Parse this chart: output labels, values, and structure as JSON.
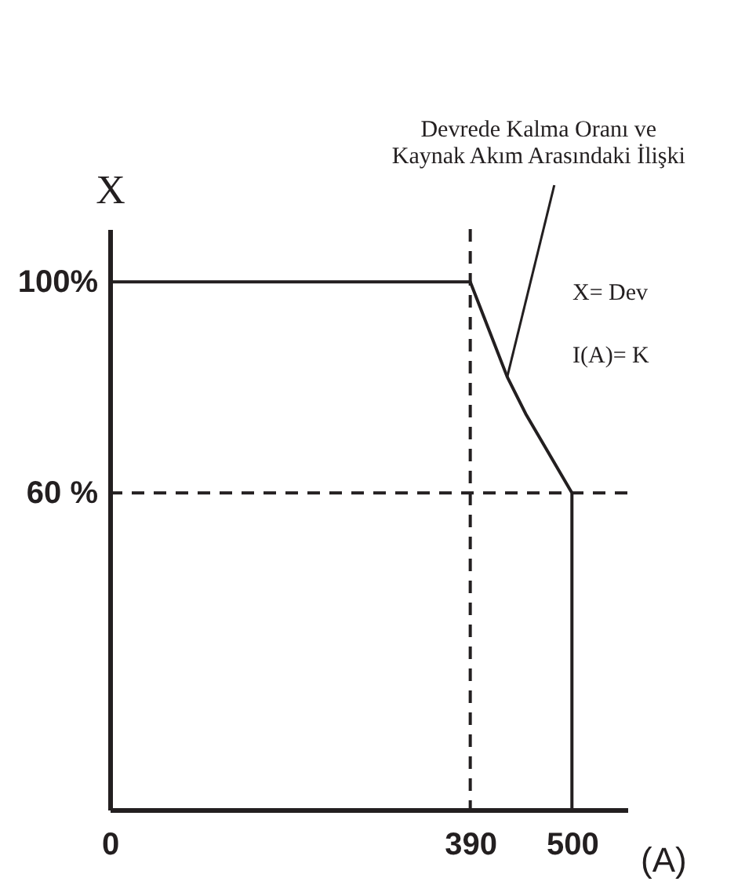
{
  "chart_data": {
    "type": "line",
    "xlabel": "(A)",
    "ylabel": "X",
    "x": [
      0,
      390,
      410,
      430,
      450,
      470,
      500,
      500
    ],
    "series": [
      {
        "color": "#231f20",
        "values": [
          100,
          100,
          91,
          82,
          75,
          69,
          60,
          0
        ]
      }
    ],
    "xlim": [
      0,
      560
    ],
    "ylim": [
      0,
      110
    ],
    "xticks": [
      0,
      390,
      500
    ],
    "yticks": [
      {
        "value": 60,
        "label": "60 %"
      },
      {
        "value": 100,
        "label": "100%"
      }
    ],
    "ref_lines": [
      {
        "axis": "x",
        "value": 390,
        "line_style": "dashed",
        "color": "#231f20"
      },
      {
        "axis": "y",
        "value": 60,
        "line_style": "dashed",
        "color": "#231f20"
      }
    ],
    "annotations": [
      {
        "text": "Devrede Kalma Oranı ve Kaynak Akım Arasındaki İlişki",
        "x": 430,
        "y": 82
      },
      "X= Dev",
      "I(A)= K"
    ],
    "grid": false,
    "marker": "none",
    "line_style": "solid"
  }
}
